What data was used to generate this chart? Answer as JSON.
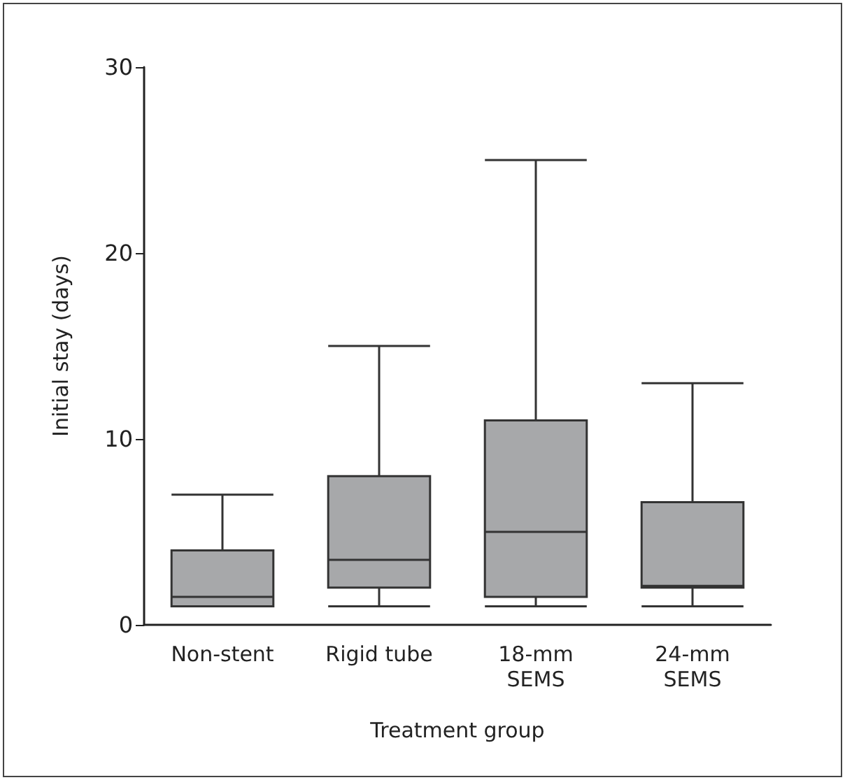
{
  "chart_data": {
    "type": "box",
    "xlabel": "Treatment group",
    "ylabel": "Initial stay (days)",
    "categories": [
      "Non-stent",
      "Rigid tube",
      "18-mm\nSEMS",
      "24-mm\nSEMS"
    ],
    "color": "#a7a8aa",
    "ylim": [
      0,
      30
    ],
    "yticks": [
      0,
      10,
      20,
      30
    ],
    "grid": false,
    "boxes": [
      {
        "low": 1,
        "q1": 1,
        "median": 1.5,
        "q3": 4,
        "high": 7
      },
      {
        "low": 1,
        "q1": 2,
        "median": 3.5,
        "q3": 8,
        "high": 15
      },
      {
        "low": 1,
        "q1": 1.5,
        "median": 5,
        "q3": 11,
        "high": 25
      },
      {
        "low": 1,
        "q1": 2,
        "median": 2.1,
        "q3": 6.6,
        "high": 13
      }
    ]
  }
}
